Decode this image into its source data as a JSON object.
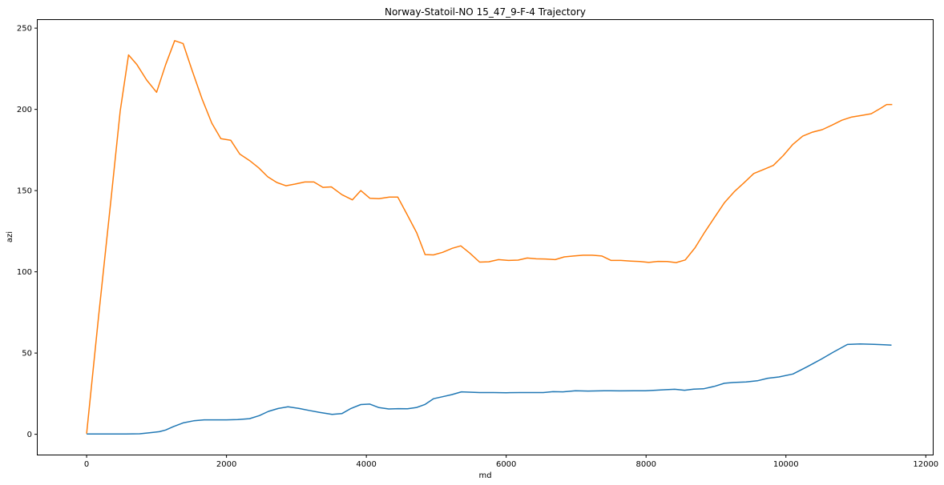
{
  "chart_data": {
    "type": "line",
    "title": "Norway-Statoil-NO 15_47_9-F-4 Trajectory",
    "xlabel": "md",
    "ylabel": "azi",
    "xlim": [
      -700,
      12100
    ],
    "ylim": [
      -12.5,
      255
    ],
    "xticks": [
      0,
      2000,
      4000,
      6000,
      8000,
      10000,
      12000
    ],
    "yticks": [
      0,
      50,
      100,
      150,
      200,
      250
    ],
    "xtick_labels": [
      "0",
      "2000",
      "4000",
      "6000",
      "8000",
      "10000",
      "12000"
    ],
    "ytick_labels": [
      "0",
      "50",
      "100",
      "150",
      "200",
      "250"
    ],
    "grid": false,
    "series": [
      {
        "color": "#1f77b4",
        "x": [
          0,
          160,
          350,
          560,
          760,
          900,
          1040,
          1130,
          1240,
          1380,
          1530,
          1680,
          1840,
          2000,
          2160,
          2330,
          2470,
          2600,
          2740,
          2880,
          3040,
          3180,
          3330,
          3510,
          3650,
          3780,
          3920,
          4050,
          4180,
          4320,
          4460,
          4590,
          4720,
          4840,
          4960,
          5090,
          5220,
          5360,
          5620,
          5820,
          6000,
          6200,
          6380,
          6530,
          6670,
          6810,
          6990,
          7170,
          7400,
          7620,
          7840,
          7990,
          8130,
          8260,
          8410,
          8550,
          8680,
          8820,
          8980,
          9120,
          9250,
          9430,
          9590,
          9740,
          9900,
          10100,
          10300,
          10500,
          10680,
          10880,
          11060,
          11260,
          11400,
          11510
        ],
        "values": [
          0.2,
          0.2,
          0.2,
          0.2,
          0.3,
          0.9,
          1.6,
          2.6,
          4.7,
          7.0,
          8.3,
          8.9,
          8.9,
          8.9,
          9.1,
          9.6,
          11.5,
          14.1,
          15.9,
          16.9,
          15.9,
          14.7,
          13.5,
          12.3,
          12.7,
          15.9,
          18.3,
          18.6,
          16.4,
          15.6,
          15.8,
          15.7,
          16.5,
          18.4,
          21.9,
          23.1,
          24.4,
          26.1,
          25.7,
          25.7,
          25.6,
          25.7,
          25.7,
          25.7,
          26.2,
          26.1,
          26.8,
          26.6,
          26.8,
          26.7,
          26.8,
          26.8,
          27.1,
          27.4,
          27.7,
          27.1,
          27.8,
          28.0,
          29.5,
          31.4,
          31.9,
          32.2,
          32.9,
          34.5,
          35.3,
          37.1,
          41.5,
          46.1,
          50.6,
          55.3,
          55.6,
          55.4,
          55.1,
          54.9
        ]
      },
      {
        "color": "#ff7f0e",
        "x": [
          0,
          170,
          350,
          480,
          600,
          720,
          860,
          1000,
          1130,
          1260,
          1380,
          1500,
          1650,
          1790,
          1920,
          2060,
          2190,
          2330,
          2460,
          2590,
          2720,
          2850,
          2980,
          3120,
          3250,
          3380,
          3500,
          3650,
          3800,
          3920,
          4050,
          4180,
          4330,
          4450,
          4580,
          4720,
          4840,
          4960,
          5090,
          5230,
          5350,
          5480,
          5620,
          5750,
          5890,
          6030,
          6170,
          6300,
          6430,
          6560,
          6700,
          6830,
          6960,
          7100,
          7230,
          7370,
          7500,
          7640,
          7780,
          7910,
          8040,
          8170,
          8300,
          8430,
          8560,
          8700,
          8840,
          8980,
          9120,
          9260,
          9400,
          9540,
          9680,
          9820,
          9960,
          10100,
          10240,
          10380,
          10520,
          10660,
          10800,
          10940,
          11080,
          11220,
          11360,
          11440,
          11520
        ],
        "values": [
          0.4,
          72,
          145,
          199,
          233.5,
          227.5,
          218,
          210.5,
          227.5,
          242.3,
          240.5,
          225,
          206.5,
          191.5,
          182,
          181,
          172.5,
          168.5,
          164,
          158.5,
          155,
          153,
          154,
          155.3,
          155.3,
          152,
          152.3,
          147.5,
          144.3,
          150,
          145.3,
          145,
          146,
          146,
          135.5,
          124,
          110.6,
          110.4,
          112,
          114.5,
          116,
          111.5,
          106,
          106.2,
          107.5,
          107,
          107.2,
          108.5,
          108,
          107.9,
          107.5,
          109.2,
          109.7,
          110.2,
          110.2,
          109.7,
          107,
          107,
          106.6,
          106.3,
          105.8,
          106.4,
          106.3,
          105.7,
          107.3,
          114.8,
          124.5,
          133.5,
          142.5,
          149.3,
          154.8,
          160.5,
          163,
          165.5,
          171.5,
          178.5,
          183.5,
          186,
          187.5,
          190.3,
          193.3,
          195.3,
          196.3,
          197.3,
          200.8,
          203,
          203
        ]
      }
    ]
  }
}
